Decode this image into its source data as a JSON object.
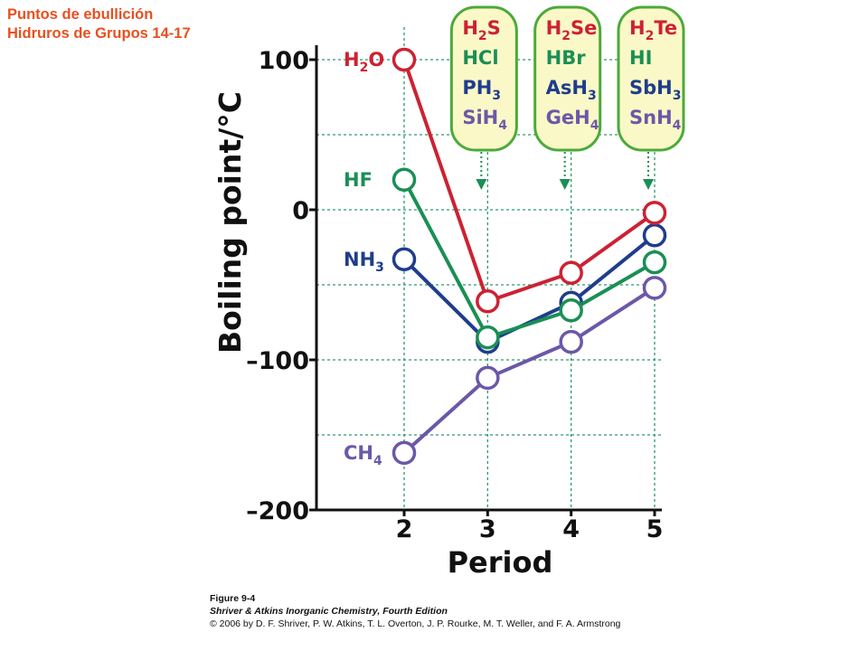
{
  "slide": {
    "title_line1": "Puntos de ebullición",
    "title_line2": "Hidruros de Grupos 14-17"
  },
  "chart_data": {
    "type": "line",
    "xlabel": "Period",
    "ylabel": "Boiling point/°C",
    "x": [
      2,
      3,
      4,
      5
    ],
    "xticks": [
      "2",
      "3",
      "4",
      "5"
    ],
    "xlim": [
      1,
      5
    ],
    "ylim": [
      -200,
      110
    ],
    "yticks": [
      {
        "value": 100,
        "label": "100"
      },
      {
        "value": 0,
        "label": "0"
      },
      {
        "value": -100,
        "label": "–100"
      },
      {
        "value": -200,
        "label": "–200"
      }
    ],
    "grid": true,
    "series": [
      {
        "key": "h2o",
        "label_main": "H",
        "label_sub": "2",
        "label_rest": "O",
        "color": "#cc2233",
        "values": [
          100,
          -61,
          -42,
          -2
        ]
      },
      {
        "key": "hf",
        "label_main": "HF",
        "label_sub": "",
        "label_rest": "",
        "color": "#1a8f55",
        "values": [
          20,
          -85,
          -67,
          -35
        ]
      },
      {
        "key": "nh3",
        "label_main": "NH",
        "label_sub": "3",
        "label_rest": "",
        "color": "#1f3d8c",
        "values": [
          -33,
          -88,
          -62,
          -17
        ]
      },
      {
        "key": "ch4",
        "label_main": "CH",
        "label_sub": "4",
        "label_rest": "",
        "color": "#6b58a8",
        "values": [
          -162,
          -112,
          -88,
          -52
        ]
      }
    ],
    "group_boxes": [
      {
        "period": 3,
        "lines": [
          {
            "main": "H",
            "sub": "2",
            "rest": "S",
            "color": "#cc2233"
          },
          {
            "main": "HCl",
            "sub": "",
            "rest": "",
            "color": "#1a8f55"
          },
          {
            "main": "PH",
            "sub": "3",
            "rest": "",
            "color": "#1f3d8c"
          },
          {
            "main": "SiH",
            "sub": "4",
            "rest": "",
            "color": "#6b58a8"
          }
        ]
      },
      {
        "period": 4,
        "lines": [
          {
            "main": "H",
            "sub": "2",
            "rest": "Se",
            "color": "#cc2233"
          },
          {
            "main": "HBr",
            "sub": "",
            "rest": "",
            "color": "#1a8f55"
          },
          {
            "main": "AsH",
            "sub": "3",
            "rest": "",
            "color": "#1f3d8c"
          },
          {
            "main": "GeH",
            "sub": "4",
            "rest": "",
            "color": "#6b58a8"
          }
        ]
      },
      {
        "period": 5,
        "lines": [
          {
            "main": "H",
            "sub": "2",
            "rest": "Te",
            "color": "#cc2233"
          },
          {
            "main": "HI",
            "sub": "",
            "rest": "",
            "color": "#1a8f55"
          },
          {
            "main": "SbH",
            "sub": "3",
            "rest": "",
            "color": "#1f3d8c"
          },
          {
            "main": "SnH",
            "sub": "4",
            "rest": "",
            "color": "#6b58a8"
          }
        ]
      }
    ]
  },
  "caption": {
    "figure": "Figure 9-4",
    "book": "Shriver & Atkins Inorganic Chemistry, Fourth Edition",
    "copyright": "© 2006 by D. F. Shriver, P. W. Atkins, T. L. Overton, J. P. Rourke, M. T. Weller, and F. A. Armstrong"
  }
}
